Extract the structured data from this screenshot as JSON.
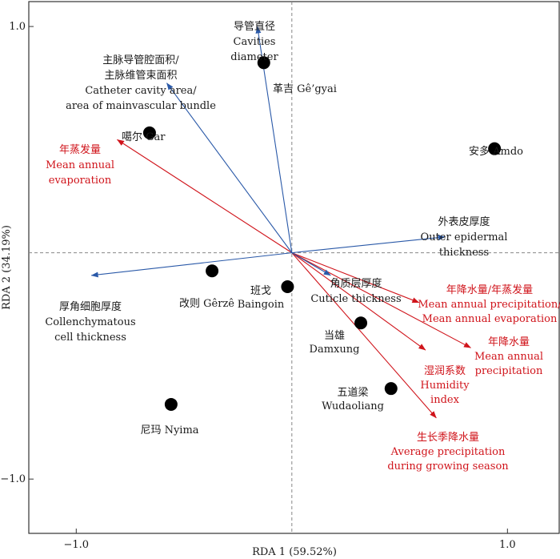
{
  "chart_data": {
    "type": "scatter",
    "title": "",
    "xlabel": "RDA 1 (59.52%)",
    "ylabel": "RDA 2 (34.19%)",
    "xlim": [
      -1.22,
      1.24
    ],
    "ylim": [
      -1.24,
      1.11
    ],
    "xticks": [
      -1.0,
      1.0
    ],
    "xtick_labels": [
      "−1.0",
      "1.0"
    ],
    "yticks": [
      1.0,
      -1.0
    ],
    "ytick_labels": [
      "1.0",
      "−1.0"
    ],
    "zero_lines": true,
    "colors": {
      "site": "#000000",
      "trait_arrow": "#2a59a8",
      "env_arrow": "#d0141b",
      "text": "#1a1a1a",
      "env_text": "#d0141b"
    },
    "sites": [
      {
        "id": "gegyai",
        "x": -0.13,
        "y": 0.84,
        "label": [
          "革吉 Gê’gyai"
        ]
      },
      {
        "id": "gar",
        "x": -0.66,
        "y": 0.53,
        "label": [
          "噶尔 Gar"
        ]
      },
      {
        "id": "amdo",
        "x": 0.94,
        "y": 0.46,
        "label": [
          "安多 Amdo"
        ]
      },
      {
        "id": "gerze",
        "x": -0.37,
        "y": -0.08,
        "label": [
          "改则 Gêrzê"
        ]
      },
      {
        "id": "baingoin",
        "x": -0.02,
        "y": -0.15,
        "label": [
          "班戈",
          "Baingoin"
        ]
      },
      {
        "id": "damxung",
        "x": 0.32,
        "y": -0.31,
        "label": [
          "当雄",
          "Damxung"
        ]
      },
      {
        "id": "wudaoliang",
        "x": 0.46,
        "y": -0.6,
        "label": [
          "五道梁",
          "Wudaoliang"
        ]
      },
      {
        "id": "nyima",
        "x": -0.56,
        "y": -0.67,
        "label": [
          "尼玛 Nyima"
        ]
      }
    ],
    "trait_arrows": [
      {
        "id": "cavities-diameter",
        "x": -0.16,
        "y": 1.0,
        "label": [
          "导管直径",
          "Cavities",
          "diameter"
        ]
      },
      {
        "id": "cavity-area-ratio",
        "x": -0.58,
        "y": 0.75,
        "label": [
          "主脉导管腔面积/",
          "主脉维管束面积",
          "Catheter cavity area/",
          "area of mainvascular bundle"
        ]
      },
      {
        "id": "outer-epidermal",
        "x": 0.71,
        "y": 0.07,
        "label": [
          "外表皮厚度",
          "Outer epidermal",
          "thickness"
        ]
      },
      {
        "id": "collenchymatous",
        "x": -0.93,
        "y": -0.1,
        "label": [
          "厚角细胞厚度",
          "Collenchymatous",
          "cell thickness"
        ]
      },
      {
        "id": "cuticle",
        "x": 0.18,
        "y": -0.1,
        "label": [
          "角质层厚度",
          "Cuticle thickness"
        ]
      }
    ],
    "env_arrows": [
      {
        "id": "evaporation",
        "x": -0.81,
        "y": 0.5,
        "label": [
          "年蒸发量",
          "Mean annual",
          "evaporation"
        ]
      },
      {
        "id": "precip-evap-ratio",
        "x": 0.59,
        "y": -0.22,
        "label": [
          "年降水量/年蒸发量",
          "Mean annual  precipitation/",
          "Mean annual evaporation"
        ]
      },
      {
        "id": "annual-precip",
        "x": 0.83,
        "y": -0.42,
        "label": [
          "年降水量",
          "Mean annual",
          "precipitation"
        ]
      },
      {
        "id": "humidity",
        "x": 0.62,
        "y": -0.43,
        "label": [
          "湿润系数",
          "Humidity",
          "index"
        ]
      },
      {
        "id": "growing-season",
        "x": 0.67,
        "y": -0.73,
        "label": [
          "生长季降水量",
          "Average  precipitation",
          "during growing season"
        ]
      }
    ]
  }
}
